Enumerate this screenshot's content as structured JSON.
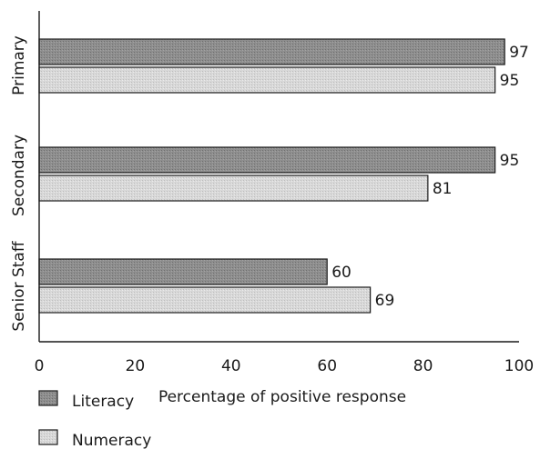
{
  "chart_data": {
    "type": "bar",
    "orientation": "horizontal",
    "categories": [
      "Primary",
      "Secondary",
      "Senior Staff"
    ],
    "series": [
      {
        "name": "Literacy",
        "values": [
          97,
          95,
          60
        ],
        "color": "#8c8c8c"
      },
      {
        "name": "Numeracy",
        "values": [
          95,
          81,
          69
        ],
        "color": "#d6d6d6"
      }
    ],
    "xlabel": "Percentage of positive response",
    "ylabel": "",
    "xlim": [
      0,
      100
    ],
    "xticks": [
      0,
      20,
      40,
      60,
      80,
      100
    ],
    "grid": false,
    "legend_position": "bottom-left",
    "data_labels": true
  }
}
